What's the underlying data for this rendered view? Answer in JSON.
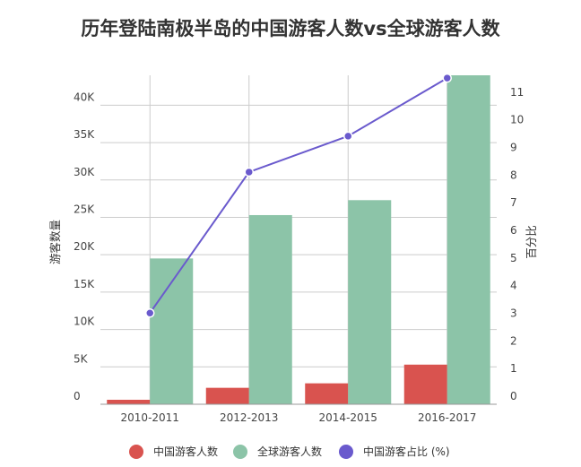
{
  "colors": {
    "china": "#d9534f",
    "global": "#8cc4a8",
    "ratio": "#6a5acd",
    "grid": "#cccccc",
    "axis": "#999999"
  },
  "chart_data": {
    "type": "bar",
    "title": "历年登陆南极半岛的中国游客人数vs全球游客人数",
    "categories": [
      "2010-2011",
      "2012-2013",
      "2014-2015",
      "2016-2017"
    ],
    "ylabel": "游客数量",
    "y2label": "百分比",
    "ylim": [
      0,
      44000
    ],
    "y2lim": [
      0,
      11.9
    ],
    "y_ticks": [
      0,
      5000,
      10000,
      15000,
      20000,
      25000,
      30000,
      35000,
      40000
    ],
    "y_tick_labels": [
      "0",
      "5K",
      "10K",
      "15K",
      "20K",
      "25K",
      "30K",
      "35K",
      "40K"
    ],
    "y2_ticks": [
      0,
      1,
      2,
      3,
      4,
      5,
      6,
      7,
      8,
      9,
      10,
      11
    ],
    "y2_tick_labels": [
      "0",
      "1",
      "2",
      "3",
      "4",
      "5",
      "6",
      "7",
      "8",
      "9",
      "10",
      "11"
    ],
    "grid": true,
    "legend_position": "bottom",
    "series": [
      {
        "name": "中国游客人数",
        "type": "bar",
        "axis": "left",
        "values": [
          600,
          2200,
          2800,
          5300
        ]
      },
      {
        "name": "全球游客人数",
        "type": "bar",
        "axis": "left",
        "values": [
          19500,
          25300,
          27300,
          44000
        ]
      },
      {
        "name": "中国游客占比 (%)",
        "type": "line",
        "axis": "right",
        "values": [
          3.3,
          8.4,
          9.7,
          11.8
        ]
      }
    ]
  }
}
